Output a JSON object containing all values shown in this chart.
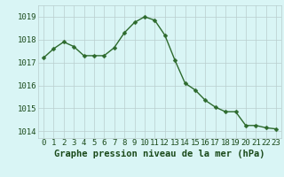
{
  "x": [
    0,
    1,
    2,
    3,
    4,
    5,
    6,
    7,
    8,
    9,
    10,
    11,
    12,
    13,
    14,
    15,
    16,
    17,
    18,
    19,
    20,
    21,
    22,
    23
  ],
  "y": [
    1017.2,
    1017.6,
    1017.9,
    1017.7,
    1017.3,
    1017.3,
    1017.3,
    1017.65,
    1018.3,
    1018.75,
    1019.0,
    1018.85,
    1018.2,
    1017.1,
    1016.1,
    1015.8,
    1015.35,
    1015.05,
    1014.85,
    1014.85,
    1014.25,
    1014.25,
    1014.15,
    1014.1
  ],
  "line_color": "#2d6a2d",
  "marker": "D",
  "marker_size": 2.5,
  "linewidth": 1.0,
  "bg_color": "#d9f5f5",
  "grid_color": "#b8cece",
  "xlabel": "Graphe pression niveau de la mer (hPa)",
  "xlabel_color": "#1a4a1a",
  "xlabel_fontsize": 7.5,
  "tick_color": "#1a4a1a",
  "tick_fontsize": 6.5,
  "ylim": [
    1013.7,
    1019.5
  ],
  "yticks": [
    1014,
    1015,
    1016,
    1017,
    1018,
    1019
  ],
  "xlim": [
    -0.5,
    23.5
  ],
  "xticks": [
    0,
    1,
    2,
    3,
    4,
    5,
    6,
    7,
    8,
    9,
    10,
    11,
    12,
    13,
    14,
    15,
    16,
    17,
    18,
    19,
    20,
    21,
    22,
    23
  ]
}
